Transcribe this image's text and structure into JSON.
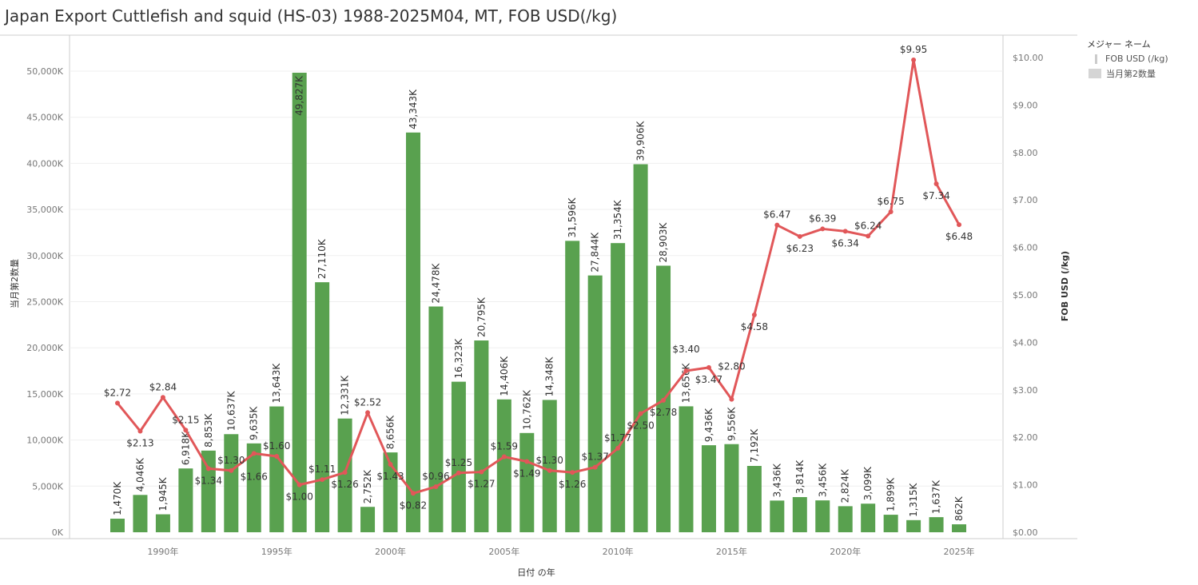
{
  "title": "Japan Export Cuttlefish and squid (HS-03) 1988-2025M04, MT, FOB USD(/kg)",
  "legend": {
    "title": "メジャー ネーム",
    "items": [
      "FOB USD (/kg)",
      "当月第2数量"
    ]
  },
  "colors": {
    "bar": "#59a14f",
    "line": "#e15759"
  },
  "chart_data": {
    "type": "bar+line",
    "title": "Japan Export Cuttlefish and squid (HS-03) 1988-2025M04, MT, FOB USD(/kg)",
    "xlabel": "日付 の年",
    "ylabel": "当月第2数量",
    "y2label": "FOB USD (/kg)",
    "ylim": [
      0,
      50000
    ],
    "y2lim": [
      0,
      10
    ],
    "x_ticks": [
      "1990年",
      "1995年",
      "2000年",
      "2005年",
      "2010年",
      "2015年",
      "2020年",
      "2025年"
    ],
    "y_ticks": [
      "0K",
      "5,000K",
      "10,000K",
      "15,000K",
      "20,000K",
      "25,000K",
      "30,000K",
      "35,000K",
      "40,000K",
      "45,000K",
      "50,000K"
    ],
    "y2_ticks": [
      "$0.00",
      "$1.00",
      "$2.00",
      "$3.00",
      "$4.00",
      "$5.00",
      "$6.00",
      "$7.00",
      "$8.00",
      "$9.00",
      "$10.00"
    ],
    "years": [
      1988,
      1989,
      1990,
      1991,
      1992,
      1993,
      1994,
      1995,
      1996,
      1997,
      1998,
      1999,
      2000,
      2001,
      2002,
      2003,
      2004,
      2005,
      2006,
      2007,
      2008,
      2009,
      2010,
      2011,
      2012,
      2013,
      2014,
      2015,
      2016,
      2017,
      2018,
      2019,
      2020,
      2021,
      2022,
      2023,
      2024,
      2025
    ],
    "series": [
      {
        "name": "当月第2数量",
        "type": "bar",
        "values": [
          1470,
          4046,
          1945,
          6918,
          8853,
          10637,
          9635,
          13643,
          49827,
          27110,
          12331,
          2752,
          8656,
          43343,
          24478,
          16323,
          20795,
          14406,
          10762,
          14348,
          31596,
          27844,
          31354,
          39906,
          28903,
          13656,
          9436,
          9556,
          7192,
          3436,
          3814,
          3456,
          2824,
          3099,
          1899,
          1315,
          1637,
          862
        ],
        "labels": [
          "1,470K",
          "4,046K",
          "1,945K",
          "6,918K",
          "8,853K",
          "10,637K",
          "9,635K",
          "13,643K",
          "49,827K",
          "27,110K",
          "12,331K",
          "2,752K",
          "8,656K",
          "43,343K",
          "24,478K",
          "16,323K",
          "20,795K",
          "14,406K",
          "10,762K",
          "14,348K",
          "31,596K",
          "27,844K",
          "31,354K",
          "39,906K",
          "28,903K",
          "13,656K",
          "9,436K",
          "9,556K",
          "7,192K",
          "3,436K",
          "3,814K",
          "3,456K",
          "2,824K",
          "3,099K",
          "1,899K",
          "1,315K",
          "1,637K",
          "862K"
        ]
      },
      {
        "name": "FOB USD (/kg)",
        "type": "line",
        "values": [
          2.72,
          2.13,
          2.84,
          2.15,
          1.34,
          1.3,
          1.66,
          1.6,
          1.0,
          1.11,
          1.26,
          2.52,
          1.43,
          0.82,
          0.96,
          1.25,
          1.27,
          1.59,
          1.49,
          1.3,
          1.26,
          1.37,
          1.77,
          2.5,
          2.78,
          3.4,
          3.47,
          2.8,
          4.58,
          6.47,
          6.23,
          6.39,
          6.34,
          6.24,
          6.75,
          9.95,
          7.34,
          6.48
        ],
        "labels": [
          "$2.72",
          "$2.13",
          "$2.84",
          "$2.15",
          "$1.34",
          "$1.30",
          "$1.66",
          "$1.60",
          "$1.00",
          "$1.11",
          "$1.26",
          "$2.52",
          "$1.43",
          "$0.82",
          "$0.96",
          "$1.25",
          "$1.27",
          "$1.59",
          "$1.49",
          "$1.30",
          "$1.26",
          "$1.37",
          "$1.77",
          "$2.50",
          "$2.78",
          "$3.40",
          "$3.47",
          "$2.80",
          "$4.58",
          "$6.47",
          "$6.23",
          "$6.39",
          "$6.34",
          "$6.24",
          "$6.75",
          "$9.95",
          "$7.34",
          "$6.48"
        ]
      }
    ]
  }
}
